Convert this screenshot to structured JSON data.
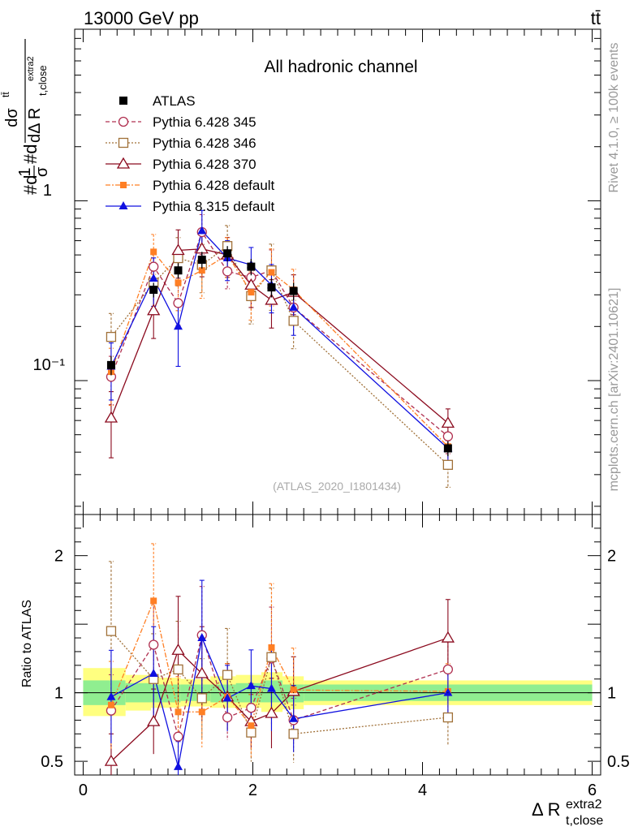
{
  "header": {
    "energy_label": "13000 GeV pp",
    "process_label": "tt̄"
  },
  "side_text": {
    "rivet": "Rivet 4.1.0, ≥ 100k events",
    "site": "mcplots.cern.ch [arXiv:2401.10621]"
  },
  "chart_data": {
    "type": "line",
    "title": "All hadronic channel",
    "analysis_label": "(ATLAS_2020_I1801434)",
    "ylabel_main": "#d1/σ#dd σ^{ttt} / dΔ R^{extra2}_{t,close}",
    "ylabel_main_parts": {
      "pre": "#d",
      "f1_num": "1",
      "f1_den": "σ",
      "mid": "#d",
      "f2_num": "dσ",
      "f2_num_sup": "tt̄",
      "f2_den": "dΔ R",
      "f2_den_sub": "t,close",
      "f2_den_sup": "extra2"
    },
    "ylabel_ratio": "Ratio to ATLAS",
    "xlabel": {
      "base": "Δ R",
      "sub": "t,close",
      "sup": "extra2"
    },
    "xlim": [
      -0.1,
      6.1
    ],
    "ylim_main": [
      0.018,
      9.0
    ],
    "ylim_ratio": [
      0.4,
      2.3
    ],
    "y_scale_main": "log",
    "x_ticks": [
      "0",
      "2",
      "4",
      "6"
    ],
    "y_ticks_main": [
      "10⁻¹",
      "1"
    ],
    "y_ticks_ratio": [
      "0.5",
      "1",
      "2"
    ],
    "legend_position": "top-left",
    "x": [
      0.33,
      0.83,
      1.12,
      1.4,
      1.7,
      1.98,
      2.22,
      2.48,
      4.3
    ],
    "ratio_band_edges": [
      0.0,
      0.5,
      0.8,
      1.15,
      1.5,
      1.8,
      2.1,
      2.35,
      2.6,
      6.0
    ],
    "ratio_band_inner": [
      [
        0.91,
        1.09
      ],
      [
        0.93,
        1.07
      ],
      [
        0.93,
        1.06
      ],
      [
        0.94,
        1.06
      ],
      [
        0.93,
        1.06
      ],
      [
        0.93,
        1.07
      ],
      [
        0.93,
        1.09
      ],
      [
        0.93,
        1.06
      ],
      [
        0.94,
        1.06
      ]
    ],
    "ratio_band_outer": [
      [
        0.83,
        1.18
      ],
      [
        0.87,
        1.13
      ],
      [
        0.89,
        1.11
      ],
      [
        0.9,
        1.1
      ],
      [
        0.89,
        1.12
      ],
      [
        0.89,
        1.13
      ],
      [
        0.86,
        1.15
      ],
      [
        0.88,
        1.12
      ],
      [
        0.91,
        1.09
      ]
    ],
    "data": {
      "name": "ATLAS",
      "values": [
        0.122,
        0.32,
        0.41,
        0.47,
        0.51,
        0.43,
        0.33,
        0.315,
        0.042
      ],
      "errors": [
        0.015,
        0.03,
        0.04,
        0.05,
        0.05,
        0.045,
        0.04,
        0.035,
        0.004
      ]
    },
    "series": [
      {
        "name": "Pythia 6.428 345",
        "color": "#b03050",
        "marker": "circle-open",
        "dash": "5,3",
        "values": [
          0.105,
          0.43,
          0.27,
          0.67,
          0.405,
          0.375,
          0.41,
          0.255,
          0.049
        ],
        "ratio": [
          0.87,
          1.35,
          0.68,
          1.42,
          0.82,
          0.89,
          1.25,
          0.8,
          1.17
        ],
        "err": [
          0.3,
          0.25,
          0.25,
          0.25,
          0.2,
          0.2,
          0.3,
          0.2,
          0.2
        ]
      },
      {
        "name": "Pythia 6.428 346",
        "color": "#a07038",
        "marker": "square-open",
        "dash": "2,2",
        "values": [
          0.175,
          0.35,
          0.48,
          0.44,
          0.56,
          0.295,
          0.41,
          0.215,
          0.034
        ],
        "ratio": [
          1.45,
          1.1,
          1.17,
          0.96,
          1.13,
          0.71,
          1.26,
          0.7,
          0.82
        ],
        "err": [
          0.35,
          0.3,
          0.3,
          0.3,
          0.3,
          0.3,
          0.4,
          0.3,
          0.25
        ]
      },
      {
        "name": "Pythia 6.428 370",
        "color": "#8b0a1e",
        "marker": "triangle-open",
        "dash": "",
        "values": [
          0.062,
          0.245,
          0.53,
          0.54,
          0.5,
          0.34,
          0.28,
          0.31,
          0.058
        ],
        "ratio": [
          0.5,
          0.79,
          1.31,
          1.14,
          0.97,
          0.79,
          0.85,
          1.01,
          1.4
        ],
        "err": [
          0.4,
          0.3,
          0.3,
          0.3,
          0.25,
          0.25,
          0.3,
          0.25,
          0.2
        ]
      },
      {
        "name": "Pythia 6.428 default",
        "color": "#ff7f24",
        "marker": "square-filled",
        "dash": "6,2,2,2",
        "values": [
          0.112,
          0.52,
          0.35,
          0.41,
          0.5,
          0.31,
          0.4,
          0.32,
          0.043
        ],
        "ratio": [
          0.91,
          1.67,
          0.86,
          0.86,
          0.97,
          0.76,
          1.33,
          1.02,
          1.01
        ],
        "err": [
          0.35,
          0.25,
          0.3,
          0.3,
          0.25,
          0.3,
          0.35,
          0.3,
          0.2
        ]
      },
      {
        "name": "Pythia 8.315 default",
        "color": "#1010e0",
        "marker": "triangle-filled",
        "dash": "",
        "values": [
          0.12,
          0.37,
          0.2,
          0.68,
          0.48,
          0.44,
          0.34,
          0.255,
          0.042
        ],
        "ratio": [
          0.97,
          1.14,
          0.46,
          1.4,
          0.96,
          1.05,
          1.03,
          0.81,
          1.0
        ],
        "err": [
          0.35,
          0.3,
          0.4,
          0.3,
          0.25,
          0.25,
          0.3,
          0.3,
          0.2
        ]
      }
    ]
  }
}
